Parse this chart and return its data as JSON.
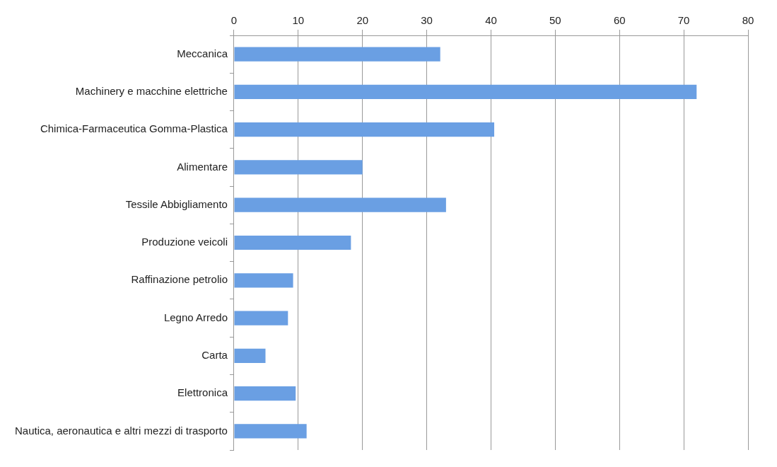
{
  "chart_data": {
    "type": "bar",
    "orientation": "horizontal",
    "categories": [
      "Meccanica",
      "Machinery e macchine elettriche",
      "Chimica-Farmaceutica Gomma-Plastica",
      "Alimentare",
      "Tessile Abbigliamento",
      "Produzione veicoli",
      "Raffinazione petrolio",
      "Legno Arredo",
      "Carta",
      "Elettronica",
      "Nautica, aeronautica e altri mezzi di trasporto"
    ],
    "values": [
      32.1,
      72,
      40.5,
      20,
      33,
      18.2,
      9.2,
      8.4,
      4.9,
      9.6,
      11.3
    ],
    "color": "#6a9fe3",
    "xlim": [
      0,
      80
    ],
    "xticks": [
      0,
      10,
      20,
      30,
      40,
      50,
      60,
      70,
      80
    ],
    "grid": "x",
    "legend": false
  }
}
